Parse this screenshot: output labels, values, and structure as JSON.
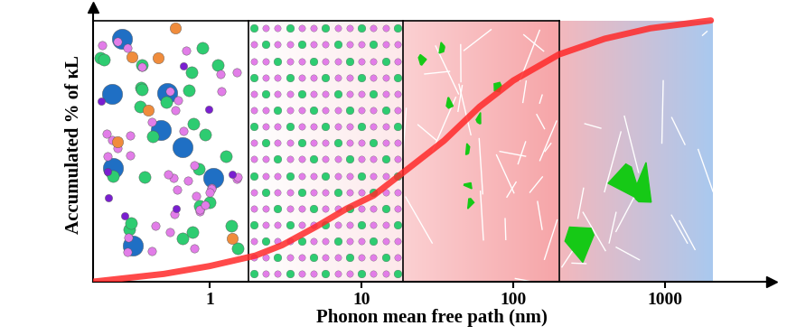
{
  "chart_data": {
    "type": "line",
    "x_label": "Phonon mean free path (nm)",
    "y_label": "Accumulated % of κL",
    "x": [
      0.17,
      0.5,
      1,
      2,
      3,
      5,
      8,
      12,
      20,
      35,
      60,
      100,
      200,
      400,
      800,
      2000
    ],
    "values": [
      0,
      3,
      6,
      10,
      14,
      21,
      28,
      33,
      43,
      54,
      67,
      77,
      87,
      93,
      97,
      100
    ],
    "color": "#ff2a2a",
    "log": "x",
    "xlim": [
      0.17,
      5000
    ],
    "xticks": [
      1,
      10,
      100,
      1000
    ],
    "ylim": [
      0,
      105
    ],
    "yticks": [],
    "tick_labels": "x",
    "grid": false
  }
}
